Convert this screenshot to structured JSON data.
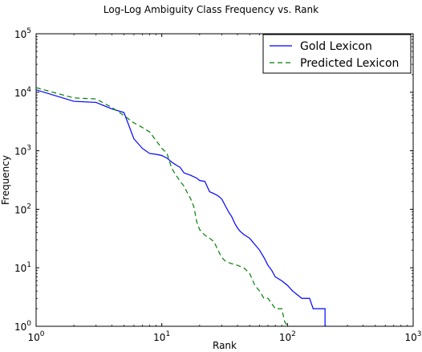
{
  "chart_data": {
    "type": "line",
    "title": "Log-Log Ambiguity Class Frequency vs. Rank",
    "xlabel": "Rank",
    "ylabel": "Frequency",
    "x_scale": "log",
    "y_scale": "log",
    "xlim": [
      1,
      1000
    ],
    "ylim": [
      1,
      100000
    ],
    "x_ticks": [
      {
        "base": "10",
        "exp": "0",
        "value": 1
      },
      {
        "base": "10",
        "exp": "1",
        "value": 10
      },
      {
        "base": "10",
        "exp": "2",
        "value": 100
      },
      {
        "base": "10",
        "exp": "3",
        "value": 1000
      }
    ],
    "y_ticks": [
      {
        "base": "10",
        "exp": "0",
        "value": 1
      },
      {
        "base": "10",
        "exp": "1",
        "value": 10
      },
      {
        "base": "10",
        "exp": "2",
        "value": 100
      },
      {
        "base": "10",
        "exp": "3",
        "value": 1000
      },
      {
        "base": "10",
        "exp": "4",
        "value": 10000
      },
      {
        "base": "10",
        "exp": "5",
        "value": 100000
      }
    ],
    "grid": false,
    "legend_position": "top-right",
    "series": [
      {
        "name": "Gold Lexicon",
        "color": "#0000ff",
        "style": "solid",
        "points": [
          [
            1,
            11000
          ],
          [
            2,
            7000
          ],
          [
            3,
            6700
          ],
          [
            4,
            5200
          ],
          [
            5,
            4500
          ],
          [
            6,
            1600
          ],
          [
            7,
            1100
          ],
          [
            8,
            900
          ],
          [
            9,
            870
          ],
          [
            10,
            830
          ],
          [
            11,
            750
          ],
          [
            12,
            640
          ],
          [
            13,
            570
          ],
          [
            14,
            520
          ],
          [
            15,
            420
          ],
          [
            17,
            380
          ],
          [
            19,
            340
          ],
          [
            20,
            310
          ],
          [
            22,
            300
          ],
          [
            24,
            200
          ],
          [
            26,
            185
          ],
          [
            28,
            170
          ],
          [
            30,
            150
          ],
          [
            32,
            115
          ],
          [
            34,
            90
          ],
          [
            36,
            75
          ],
          [
            38,
            58
          ],
          [
            40,
            48
          ],
          [
            42,
            42
          ],
          [
            45,
            37
          ],
          [
            50,
            32
          ],
          [
            55,
            25
          ],
          [
            60,
            20
          ],
          [
            65,
            15
          ],
          [
            70,
            11
          ],
          [
            75,
            9
          ],
          [
            80,
            7
          ],
          [
            90,
            6
          ],
          [
            100,
            5
          ],
          [
            110,
            4
          ],
          [
            130,
            3
          ],
          [
            150,
            3
          ],
          [
            160,
            2
          ],
          [
            199,
            2
          ],
          [
            199,
            1
          ]
        ]
      },
      {
        "name": "Predicted Lexicon",
        "color": "#007f00",
        "style": "dashed",
        "points": [
          [
            1,
            12000
          ],
          [
            2,
            8000
          ],
          [
            3,
            7700
          ],
          [
            4,
            5500
          ],
          [
            5,
            4000
          ],
          [
            6,
            3000
          ],
          [
            7,
            2500
          ],
          [
            8,
            2100
          ],
          [
            9,
            1500
          ],
          [
            10,
            1100
          ],
          [
            11,
            900
          ],
          [
            12,
            500
          ],
          [
            13,
            380
          ],
          [
            14,
            300
          ],
          [
            15,
            250
          ],
          [
            16,
            190
          ],
          [
            17,
            150
          ],
          [
            18,
            110
          ],
          [
            19,
            60
          ],
          [
            20,
            45
          ],
          [
            22,
            36
          ],
          [
            24,
            32
          ],
          [
            26,
            28
          ],
          [
            28,
            20
          ],
          [
            30,
            15
          ],
          [
            32,
            13
          ],
          [
            35,
            12
          ],
          [
            40,
            11
          ],
          [
            45,
            10
          ],
          [
            50,
            8
          ],
          [
            55,
            5
          ],
          [
            60,
            4
          ],
          [
            65,
            3
          ],
          [
            70,
            3
          ],
          [
            80,
            2
          ],
          [
            90,
            2
          ],
          [
            95,
            1.2
          ],
          [
            100,
            1
          ]
        ]
      }
    ]
  }
}
